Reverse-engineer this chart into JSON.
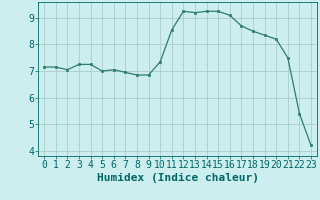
{
  "x": [
    0,
    1,
    2,
    3,
    4,
    5,
    6,
    7,
    8,
    9,
    10,
    11,
    12,
    13,
    14,
    15,
    16,
    17,
    18,
    19,
    20,
    21,
    22,
    23
  ],
  "y": [
    7.15,
    7.15,
    7.05,
    7.25,
    7.25,
    7.0,
    7.05,
    6.95,
    6.85,
    6.85,
    7.35,
    8.55,
    9.25,
    9.2,
    9.25,
    9.25,
    9.1,
    8.7,
    8.5,
    8.35,
    8.2,
    7.5,
    5.4,
    4.2
  ],
  "line_color": "#2d7d6e",
  "marker_color": "#2d7d6e",
  "background_color": "#cceeee",
  "grid_color": "#aacccc",
  "xlabel": "Humidex (Indice chaleur)",
  "xlim": [
    -0.5,
    23.5
  ],
  "ylim": [
    3.8,
    9.6
  ],
  "yticks": [
    4,
    5,
    6,
    7,
    8,
    9
  ],
  "xticks": [
    0,
    1,
    2,
    3,
    4,
    5,
    6,
    7,
    8,
    9,
    10,
    11,
    12,
    13,
    14,
    15,
    16,
    17,
    18,
    19,
    20,
    21,
    22,
    23
  ],
  "xtick_labels": [
    "0",
    "1",
    "2",
    "3",
    "4",
    "5",
    "6",
    "7",
    "8",
    "9",
    "10",
    "11",
    "12",
    "13",
    "14",
    "15",
    "16",
    "17",
    "18",
    "19",
    "20",
    "21",
    "22",
    "23"
  ],
  "font_color": "#006666",
  "tick_fontsize": 7,
  "xlabel_fontsize": 8
}
